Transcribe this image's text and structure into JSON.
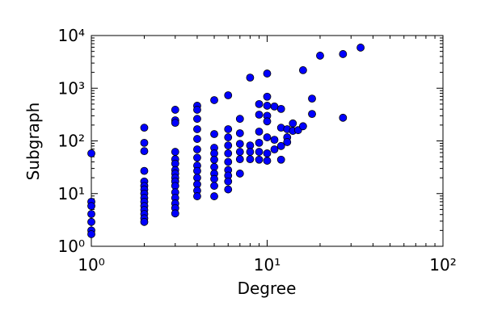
{
  "chart_data": {
    "type": "scatter",
    "x_label": "Degree",
    "y_label": "Subgraph",
    "xscale": "log",
    "yscale": "log",
    "color": "#0000ff",
    "xlim": [
      1,
      100
    ],
    "ylim": [
      1,
      10000
    ],
    "xticks": [
      {
        "value": 1,
        "label": "10⁰"
      },
      {
        "value": 10,
        "label": "10¹"
      },
      {
        "value": 100,
        "label": "10²"
      }
    ],
    "yticks": [
      {
        "value": 1,
        "label": "10⁰"
      },
      {
        "value": 10,
        "label": "10¹"
      },
      {
        "value": 100,
        "label": "10²"
      },
      {
        "value": 1000,
        "label": "10³"
      },
      {
        "value": 10000,
        "label": "10⁴"
      }
    ],
    "x": [
      1,
      1,
      1,
      1,
      1,
      1,
      1,
      2,
      2,
      2,
      2,
      2,
      2,
      2,
      2,
      2,
      2,
      2,
      2,
      2,
      2,
      2,
      3,
      3,
      3,
      3,
      3,
      3,
      3,
      3,
      3,
      3,
      3,
      3,
      3,
      3,
      3,
      3,
      4,
      4,
      4,
      4,
      4,
      4,
      4,
      4,
      4,
      4,
      4,
      4,
      4,
      5,
      5,
      5,
      5,
      5,
      5,
      5,
      5,
      5,
      5,
      6,
      6,
      6,
      6,
      6,
      6,
      6,
      6,
      6,
      6,
      7,
      7,
      7,
      7,
      7,
      7,
      8,
      8,
      8,
      8,
      9,
      9,
      9,
      9,
      9,
      9,
      10,
      10,
      10,
      10,
      10,
      10,
      10,
      10,
      11,
      11,
      11,
      12,
      12,
      12,
      12,
      13,
      13,
      13,
      14,
      14,
      15,
      16,
      16,
      18,
      18,
      20,
      27,
      27,
      34
    ],
    "y": [
      58,
      7,
      5.8,
      4.1,
      2.9,
      2,
      1.7,
      178,
      92,
      64,
      27,
      17,
      14,
      12,
      10,
      8.3,
      7,
      5.8,
      4.9,
      4.1,
      3.4,
      2.9,
      390,
      246,
      220,
      62,
      45,
      37,
      28,
      24,
      20,
      17,
      14,
      10.6,
      8.3,
      6.5,
      5.3,
      4.2,
      465,
      390,
      262,
      167,
      109,
      69,
      48,
      34,
      27,
      20,
      15,
      11.4,
      8.9,
      595,
      135,
      74,
      58,
      44,
      32,
      24,
      19,
      14,
      8.9,
      735,
      167,
      117,
      82,
      58,
      40,
      28,
      22,
      17,
      12,
      262,
      140,
      88,
      62,
      45,
      24,
      1590,
      82,
      62,
      45,
      500,
      315,
      150,
      92,
      62,
      44,
      1900,
      690,
      465,
      300,
      235,
      117,
      58,
      42,
      450,
      105,
      69,
      405,
      178,
      80,
      44,
      167,
      117,
      95,
      155,
      215,
      160,
      2200,
      190,
      635,
      325,
      4150,
      4450,
      275,
      5900
    ]
  }
}
